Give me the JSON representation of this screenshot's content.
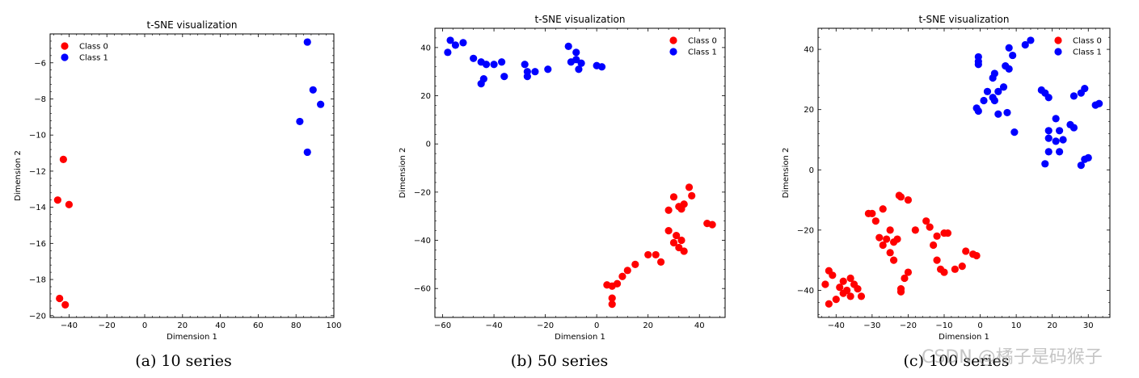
{
  "chart_data": [
    {
      "type": "scatter",
      "title": "t-SNE visualization",
      "xlabel": "Dimension 1",
      "ylabel": "Dimension 2",
      "xlim": [
        -50,
        100
      ],
      "ylim": [
        -20.1,
        -4.4
      ],
      "xticks": [
        -40,
        -20,
        0,
        20,
        40,
        60,
        80,
        100
      ],
      "yticks": [
        -20,
        -18,
        -16,
        -14,
        -12,
        -10,
        -8,
        -6
      ],
      "xticklabels": [
        "−40",
        "−20",
        "0",
        "20",
        "40",
        "60",
        "80",
        "100"
      ],
      "yticklabels": [
        "−20",
        "−18",
        "−16",
        "−14",
        "−12",
        "−10",
        "−8",
        "−6"
      ],
      "legend": "top-left",
      "series": [
        {
          "name": "Class 0",
          "color": "#ff0000",
          "x": [
            -43,
            -46,
            -40,
            -45,
            -42
          ],
          "y": [
            -11.35,
            -13.6,
            -13.85,
            -19.05,
            -19.4
          ]
        },
        {
          "name": "Class 1",
          "color": "#0000ff",
          "x": [
            86,
            89,
            93,
            82,
            86
          ],
          "y": [
            -4.85,
            -7.5,
            -8.3,
            -9.25,
            -10.95
          ]
        }
      ]
    },
    {
      "type": "scatter",
      "title": "t-SNE visualization",
      "xlabel": "Dimension 1",
      "ylabel": "Dimension 2",
      "xlim": [
        -63,
        50
      ],
      "ylim": [
        -72,
        48
      ],
      "xticks": [
        -60,
        -40,
        -20,
        0,
        20,
        40
      ],
      "yticks": [
        -60,
        -40,
        -20,
        0,
        20,
        40
      ],
      "xticklabels": [
        "−60",
        "−40",
        "−20",
        "0",
        "20",
        "40"
      ],
      "yticklabels": [
        "−60",
        "−40",
        "−20",
        "0",
        "20",
        "40"
      ],
      "legend": "top-right",
      "series": [
        {
          "name": "Class 0",
          "color": "#ff0000",
          "x": [
            36,
            37,
            30,
            34,
            32,
            33,
            28,
            43,
            45,
            28,
            31,
            30,
            33,
            32,
            34,
            20,
            23,
            25,
            15,
            12,
            10,
            8,
            4,
            6,
            6,
            6
          ],
          "y": [
            -18,
            -21.5,
            -22,
            -25,
            -26,
            -27,
            -27.5,
            -33,
            -33.5,
            -36,
            -38,
            -41,
            -40,
            -43,
            -44.5,
            -46,
            -46,
            -49,
            -50,
            -52.5,
            -55,
            -58,
            -58.5,
            -59,
            -64,
            -66.5
          ]
        },
        {
          "name": "Class 1",
          "color": "#0000ff",
          "x": [
            -57,
            -55,
            -52,
            -58,
            -48,
            -45,
            -43,
            -40,
            -37,
            -44,
            -45,
            -36,
            -28,
            -27,
            -24,
            -27,
            -19,
            -11,
            -8,
            -10,
            -8,
            -7,
            -6,
            0,
            2
          ],
          "y": [
            43,
            41,
            42,
            38,
            35.5,
            34,
            33,
            33,
            34,
            27,
            25,
            28,
            33,
            30,
            30,
            28,
            31,
            40.5,
            38,
            34,
            35,
            31,
            33.5,
            32.5,
            32
          ]
        }
      ]
    },
    {
      "type": "scatter",
      "title": "t-SNE visualization",
      "xlabel": "Dimension 1",
      "ylabel": "Dimension 2",
      "xlim": [
        -45,
        36
      ],
      "ylim": [
        -49,
        47
      ],
      "xticks": [
        -40,
        -30,
        -20,
        -10,
        0,
        10,
        20,
        30
      ],
      "yticks": [
        -40,
        -20,
        0,
        20,
        40
      ],
      "xticklabels": [
        "−40",
        "−30",
        "−20",
        "−10",
        "0",
        "10",
        "20",
        "30"
      ],
      "yticklabels": [
        "−40",
        "−20",
        "0",
        "20",
        "40"
      ],
      "legend": "top-right",
      "series": [
        {
          "name": "Class 0",
          "color": "#ff0000",
          "x": [
            -22.5,
            -22,
            -20,
            -27,
            -31,
            -30,
            -29,
            -25,
            -23,
            -18,
            -15,
            -14,
            -12,
            -10,
            -9,
            -26,
            -28,
            -24,
            -25,
            -24,
            -27,
            -13,
            -12,
            -11,
            -10,
            -7,
            -5,
            -4,
            -2,
            -1,
            -42,
            -41,
            -43,
            -38,
            -36,
            -35,
            -39,
            -37,
            -34,
            -38,
            -36,
            -33,
            -40,
            -42,
            -22,
            -22,
            -20,
            -21
          ],
          "y": [
            -8.5,
            -9,
            -10,
            -13,
            -14.5,
            -14.5,
            -17,
            -20,
            -23,
            -20,
            -17,
            -19,
            -22,
            -21,
            -21,
            -23,
            -22.5,
            -24,
            -27.5,
            -30,
            -25,
            -25,
            -30,
            -33,
            -34,
            -33,
            -32,
            -27,
            -28,
            -28.5,
            -33.5,
            -35,
            -38,
            -37,
            -36,
            -38,
            -39,
            -40,
            -39.5,
            -41,
            -42,
            -42,
            -43,
            -44.5,
            -39.5,
            -40.5,
            -34,
            -36
          ]
        },
        {
          "name": "Class 1",
          "color": "#0000ff",
          "x": [
            14,
            12.5,
            8,
            9,
            3.5,
            4,
            7,
            8,
            -0.5,
            -0.5,
            -0.5,
            2,
            5,
            1,
            3.5,
            4,
            6.5,
            7.5,
            5,
            9.5,
            -1,
            -0.5,
            17,
            18,
            19,
            29,
            28,
            26,
            33,
            32,
            21,
            19,
            19,
            25,
            26,
            22,
            23,
            21,
            22,
            19,
            18,
            30,
            29,
            28
          ],
          "y": [
            43,
            41.5,
            40.5,
            38,
            30.5,
            32,
            34.5,
            33.5,
            37.5,
            36,
            35,
            26,
            26,
            23,
            24,
            23,
            27.5,
            19,
            18.5,
            12.5,
            20.5,
            19.5,
            26.5,
            25.5,
            24,
            27,
            25.5,
            24.5,
            22,
            21.5,
            17,
            13,
            10.5,
            15,
            14,
            13,
            10,
            9.5,
            6,
            6,
            2,
            4,
            3.5,
            1.5
          ]
        }
      ]
    }
  ],
  "captions": {
    "a": "(a) 10 series",
    "b": "(b) 50 series",
    "c": "(c) 100 series"
  },
  "watermark": "CSDN @橘子是码猴子"
}
